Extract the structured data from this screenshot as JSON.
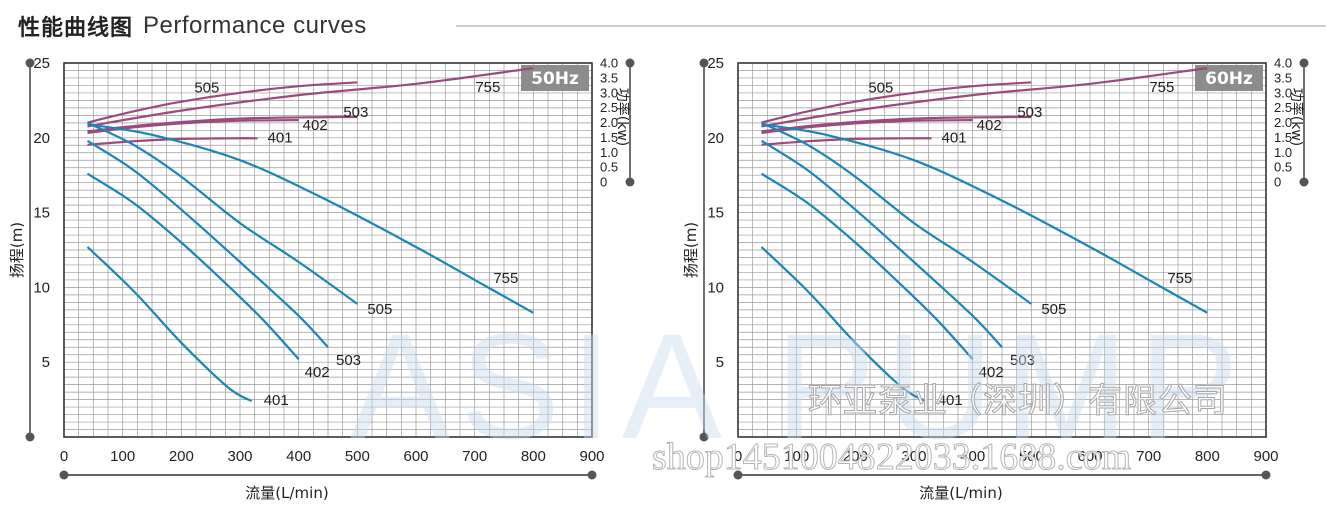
{
  "header": {
    "title_cn": "性能曲线图",
    "title_en": "Performance curves"
  },
  "watermarks": {
    "brand": "ASIA PUMP",
    "company": "环亚泵业（深圳）有限公司",
    "shop": "shop1451004822033.1688.com"
  },
  "colors": {
    "head_curve": "#1a86b7",
    "power_curve": "#9b4a7c",
    "grid": "#9a9a9a",
    "frame": "#333333",
    "freq_badge_bg": "#8c8c8c",
    "freq_badge_text": "#ffffff"
  },
  "chart_data": [
    {
      "type": "line",
      "badge": "50Hz",
      "xlabel": "流量(L/min)",
      "ylabel": "扬程(m)",
      "y2label": "功率(kw)",
      "xlim": [
        0,
        900
      ],
      "ylim": [
        0,
        25
      ],
      "y2lim": [
        0,
        4.0
      ],
      "xticks": [
        "0",
        "100",
        "200",
        "300",
        "400",
        "500",
        "600",
        "700",
        "800",
        "900"
      ],
      "yticks": [
        "5",
        "10",
        "15",
        "20",
        "25"
      ],
      "y2ticks": [
        "0",
        "0.5",
        "1.0",
        "1.5",
        "2.0",
        "2.5",
        "3.0",
        "3.5",
        "4.0"
      ],
      "grid": true,
      "head_curves": [
        {
          "name": "401",
          "x": [
            40,
            120,
            200,
            280,
            320
          ],
          "y": [
            12.7,
            9.7,
            6.3,
            3.3,
            2.4
          ]
        },
        {
          "name": "402",
          "x": [
            40,
            120,
            200,
            280,
            340,
            400
          ],
          "y": [
            17.6,
            15.6,
            13.0,
            10.1,
            7.8,
            5.2
          ]
        },
        {
          "name": "503",
          "x": [
            40,
            120,
            200,
            300,
            400,
            450
          ],
          "y": [
            19.8,
            17.8,
            15.2,
            11.7,
            8.1,
            6.0
          ]
        },
        {
          "name": "505",
          "x": [
            40,
            120,
            200,
            300,
            400,
            500
          ],
          "y": [
            21.0,
            19.5,
            17.4,
            14.3,
            11.7,
            8.9
          ]
        },
        {
          "name": "755",
          "x": [
            40,
            150,
            300,
            450,
            600,
            700,
            800
          ],
          "y": [
            20.9,
            20.2,
            18.5,
            15.8,
            12.7,
            10.5,
            8.3
          ]
        }
      ],
      "power_curves": [
        {
          "name": "401",
          "x": [
            40,
            120,
            200,
            280,
            330
          ],
          "y": [
            1.25,
            1.37,
            1.45,
            1.47,
            1.47
          ]
        },
        {
          "name": "402",
          "x": [
            40,
            120,
            200,
            300,
            400
          ],
          "y": [
            1.65,
            1.84,
            1.97,
            2.06,
            2.08
          ]
        },
        {
          "name": "503",
          "x": [
            40,
            150,
            300,
            450,
            500
          ],
          "y": [
            1.7,
            1.94,
            2.13,
            2.18,
            2.18
          ]
        },
        {
          "name": "505",
          "x": [
            40,
            120,
            200,
            300,
            400,
            500
          ],
          "y": [
            2.0,
            2.38,
            2.7,
            3.0,
            3.22,
            3.35
          ]
        },
        {
          "name": "755",
          "x": [
            40,
            200,
            400,
            600,
            800
          ],
          "y": [
            1.87,
            2.4,
            2.92,
            3.3,
            3.83
          ]
        }
      ]
    },
    {
      "type": "line",
      "badge": "60Hz",
      "xlabel": "流量(L/min)",
      "ylabel": "扬程(m)",
      "y2label": "功率(kw)",
      "xlim": [
        0,
        900
      ],
      "ylim": [
        0,
        25
      ],
      "y2lim": [
        0,
        4.0
      ],
      "xticks": [
        "0",
        "100",
        "200",
        "300",
        "400",
        "500",
        "600",
        "700",
        "800",
        "900"
      ],
      "yticks": [
        "5",
        "10",
        "15",
        "20",
        "25"
      ],
      "y2ticks": [
        "0",
        "0.5",
        "1.0",
        "1.5",
        "2.0",
        "2.5",
        "3.0",
        "3.5",
        "4.0"
      ],
      "grid": true,
      "head_curves": [
        {
          "name": "401",
          "x": [
            40,
            120,
            200,
            280,
            320
          ],
          "y": [
            12.7,
            9.7,
            6.3,
            3.3,
            2.4
          ]
        },
        {
          "name": "402",
          "x": [
            40,
            120,
            200,
            280,
            340,
            400
          ],
          "y": [
            17.6,
            15.6,
            13.0,
            10.1,
            7.8,
            5.2
          ]
        },
        {
          "name": "503",
          "x": [
            40,
            120,
            200,
            300,
            400,
            450
          ],
          "y": [
            19.8,
            17.8,
            15.2,
            11.7,
            8.1,
            6.0
          ]
        },
        {
          "name": "505",
          "x": [
            40,
            120,
            200,
            300,
            400,
            500
          ],
          "y": [
            21.0,
            19.5,
            17.4,
            14.3,
            11.7,
            8.9
          ]
        },
        {
          "name": "755",
          "x": [
            40,
            150,
            300,
            450,
            600,
            700,
            800
          ],
          "y": [
            20.9,
            20.2,
            18.5,
            15.8,
            12.7,
            10.5,
            8.3
          ]
        }
      ],
      "power_curves": [
        {
          "name": "401",
          "x": [
            40,
            120,
            200,
            280,
            330
          ],
          "y": [
            1.25,
            1.37,
            1.45,
            1.47,
            1.47
          ]
        },
        {
          "name": "402",
          "x": [
            40,
            120,
            200,
            300,
            400
          ],
          "y": [
            1.65,
            1.84,
            1.97,
            2.06,
            2.08
          ]
        },
        {
          "name": "503",
          "x": [
            40,
            150,
            300,
            450,
            500
          ],
          "y": [
            1.7,
            1.94,
            2.13,
            2.18,
            2.18
          ]
        },
        {
          "name": "505",
          "x": [
            40,
            120,
            200,
            300,
            400,
            500
          ],
          "y": [
            2.0,
            2.38,
            2.7,
            3.0,
            3.22,
            3.35
          ]
        },
        {
          "name": "755",
          "x": [
            40,
            200,
            400,
            600,
            800
          ],
          "y": [
            1.87,
            2.4,
            2.92,
            3.3,
            3.83
          ]
        }
      ]
    }
  ]
}
